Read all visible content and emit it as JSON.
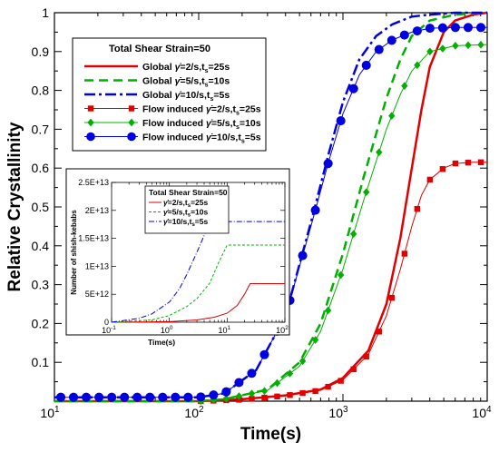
{
  "chart_data": [
    {
      "type": "line",
      "xlabel": "Time(s)",
      "ylabel": "Relative Crystallinity",
      "xscale": "log",
      "xlim": [
        10,
        10000
      ],
      "ylim": [
        0,
        1
      ],
      "xticks": [
        10,
        100,
        1000,
        10000
      ],
      "xtick_labels": [
        {
          "base": "10",
          "exp": "1"
        },
        {
          "base": "10",
          "exp": "2"
        },
        {
          "base": "10",
          "exp": "3"
        },
        {
          "base": "10",
          "exp": "4"
        }
      ],
      "yticks": [
        0.1,
        0.2,
        0.3,
        0.4,
        0.5,
        0.6,
        0.7,
        0.8,
        0.9,
        1
      ],
      "ytick_labels": [
        "0.1",
        "0.2",
        "0.3",
        "0.4",
        "0.5",
        "0.6",
        "0.7",
        "0.8",
        "0.9",
        "1"
      ],
      "legend": {
        "title": "Total Shear Strain=50",
        "placement": "top-left",
        "entries": [
          {
            "prefix": "Global ",
            "rate": "2/s",
            "ts": "25s"
          },
          {
            "prefix": "Global ",
            "rate": "5/s",
            "ts": "10s"
          },
          {
            "prefix": "Global ",
            "rate": "10/s",
            "ts": "5s"
          },
          {
            "prefix": "Flow induced ",
            "rate": "2/s",
            "ts": "25s"
          },
          {
            "prefix": "Flow induced ",
            "rate": "5/s",
            "ts": "10s"
          },
          {
            "prefix": "Flow induced ",
            "rate": "10/s",
            "ts": "5s"
          }
        ]
      },
      "series": [
        {
          "color": "#e00000",
          "dash": "solid",
          "marker": "none",
          "width": 2.5,
          "x": [
            10,
            100,
            200,
            400,
            700,
            1000,
            1500,
            2000,
            2500,
            3000,
            3500,
            4000,
            5000,
            6000,
            8000,
            10000
          ],
          "y": [
            0,
            0,
            0.005,
            0.015,
            0.03,
            0.06,
            0.13,
            0.25,
            0.42,
            0.6,
            0.75,
            0.86,
            0.95,
            0.98,
            0.995,
            1
          ]
        },
        {
          "color": "#00b000",
          "dash": "10,6",
          "marker": "none",
          "width": 2.5,
          "x": [
            10,
            100,
            150,
            300,
            500,
            700,
            1000,
            1400,
            2000,
            2500,
            3000,
            4000,
            6000,
            10000
          ],
          "y": [
            0,
            0,
            0.005,
            0.03,
            0.1,
            0.2,
            0.38,
            0.58,
            0.78,
            0.88,
            0.94,
            0.98,
            0.995,
            1
          ]
        },
        {
          "color": "#0000e0",
          "dash": "12,4,3,4",
          "marker": "none",
          "width": 2.5,
          "x": [
            10,
            100,
            150,
            250,
            400,
            600,
            800,
            1000,
            1300,
            1700,
            2200,
            3000,
            4000,
            6000,
            10000
          ],
          "y": [
            0.01,
            0.01,
            0.02,
            0.08,
            0.22,
            0.46,
            0.64,
            0.77,
            0.88,
            0.94,
            0.97,
            0.99,
            0.995,
            1,
            1
          ]
        },
        {
          "color": "#e00000",
          "dash": "solid",
          "marker": "square",
          "width": 1,
          "x": [
            10,
            100,
            200,
            400,
            700,
            1000,
            1500,
            2000,
            2500,
            3000,
            3500,
            4000,
            5000,
            6000,
            8000,
            10000
          ],
          "y": [
            0,
            0,
            0.004,
            0.014,
            0.028,
            0.055,
            0.12,
            0.22,
            0.34,
            0.45,
            0.53,
            0.57,
            0.6,
            0.612,
            0.615,
            0.615
          ]
        },
        {
          "color": "#00b000",
          "dash": "solid",
          "marker": "diamond",
          "width": 1,
          "x": [
            10,
            100,
            150,
            300,
            500,
            700,
            1000,
            1400,
            2000,
            2500,
            3000,
            4000,
            6000,
            10000
          ],
          "y": [
            0,
            0,
            0.005,
            0.028,
            0.09,
            0.18,
            0.34,
            0.52,
            0.7,
            0.79,
            0.85,
            0.9,
            0.915,
            0.918
          ]
        },
        {
          "color": "#0000e0",
          "dash": "solid",
          "marker": "circle",
          "width": 1,
          "x": [
            10,
            100,
            150,
            250,
            400,
            600,
            800,
            1000,
            1300,
            1700,
            2200,
            3000,
            4000,
            6000,
            10000
          ],
          "y": [
            0.01,
            0.01,
            0.02,
            0.08,
            0.22,
            0.45,
            0.62,
            0.74,
            0.84,
            0.9,
            0.93,
            0.95,
            0.96,
            0.962,
            0.962
          ]
        }
      ]
    },
    {
      "type": "line",
      "xlabel": "Time(s)",
      "ylabel": "Number of shish-kebabs",
      "xscale": "log",
      "xlim": [
        0.1,
        100
      ],
      "ylim": [
        0,
        25000000000000.0
      ],
      "xticks": [
        0.1,
        1,
        10,
        100
      ],
      "xtick_labels": [
        {
          "base": "10",
          "exp": "-1"
        },
        {
          "base": "10",
          "exp": "0"
        },
        {
          "base": "10",
          "exp": "1"
        },
        {
          "base": "10",
          "exp": "2"
        }
      ],
      "yticks": [
        0,
        5000000000000.0,
        10000000000000.0,
        15000000000000.0,
        20000000000000.0,
        25000000000000.0
      ],
      "ytick_labels": [
        "0",
        "5E+12",
        "1E+13",
        "1.5E+13",
        "2E+13",
        "2.5E+13"
      ],
      "legend": {
        "title": "Total Shear Strain=50",
        "placement": "top-left",
        "entries": [
          {
            "rate": "2/s",
            "ts": "25s"
          },
          {
            "rate": "5/s",
            "ts": "10s"
          },
          {
            "rate": "10/s",
            "ts": "5s"
          }
        ]
      },
      "series": [
        {
          "color": "#e00000",
          "dash": "solid",
          "width": 1,
          "x": [
            0.1,
            1,
            3,
            6,
            10,
            15,
            20,
            25,
            50,
            100
          ],
          "y": [
            0,
            100000000000.0,
            400000000000.0,
            900000000000.0,
            1600000000000.0,
            3000000000000.0,
            5000000000000.0,
            6900000000000.0,
            6900000000000.0,
            6900000000000.0
          ]
        },
        {
          "color": "#00b000",
          "dash": "3,2",
          "width": 1,
          "x": [
            0.1,
            0.5,
            1,
            2,
            3,
            5,
            7,
            10,
            20,
            50,
            100
          ],
          "y": [
            0,
            400000000000.0,
            1200000000000.0,
            2800000000000.0,
            4200000000000.0,
            7000000000000.0,
            10500000000000.0,
            13800000000000.0,
            13800000000000.0,
            13800000000000.0,
            13800000000000.0
          ]
        },
        {
          "color": "#0000e0",
          "dash": "6,2,1,2",
          "width": 1,
          "x": [
            0.1,
            0.3,
            0.5,
            1,
            1.5,
            2,
            3,
            4,
            5,
            10,
            100
          ],
          "y": [
            0,
            700000000000.0,
            1500000000000.0,
            3600000000000.0,
            6000000000000.0,
            8500000000000.0,
            12500000000000.0,
            15500000000000.0,
            18000000000000.0,
            18000000000000.0,
            18000000000000.0
          ]
        }
      ]
    }
  ]
}
